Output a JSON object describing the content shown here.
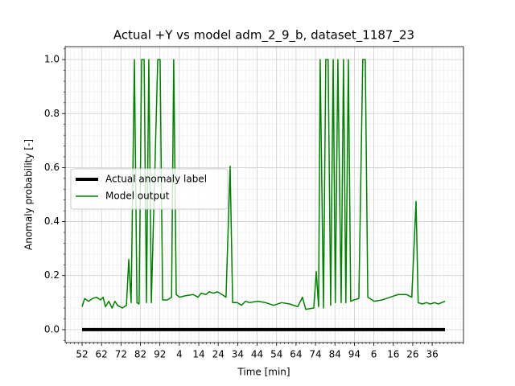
{
  "chart_data": {
    "type": "line",
    "title": "Actual +Y vs model adm_2_9_b, dataset_1187_23",
    "xlabel": "Time [min]",
    "ylabel": "Anomaly probability [-]",
    "x": [
      52,
      53.3,
      55.3,
      57.4,
      59.4,
      61.5,
      62.8,
      64.0,
      65.7,
      67.4,
      68.9,
      70.2,
      72.7,
      74.8,
      76.0,
      77.2,
      78.9,
      80.2,
      81.3,
      82.6,
      83.9,
      85.1,
      86.3,
      87.6,
      90.9,
      92.1,
      93.4,
      95.8,
      98.0,
      99.1,
      100.4,
      102.1,
      104.9,
      109.1,
      111.6,
      113.2,
      115.7,
      117.3,
      119.5,
      121.5,
      124.0,
      126.0,
      128.1,
      129.4,
      131.8,
      134.0,
      136.0,
      138.1,
      142.2,
      146.3,
      150.5,
      154.6,
      158.7,
      162.9,
      165.3,
      167.0,
      171.1,
      172.4,
      173.6,
      174.4,
      176.1,
      177.3,
      178.5,
      179.8,
      181.1,
      182.2,
      183.5,
      185.2,
      186.4,
      187.6,
      188.9,
      190.1,
      191.8,
      194.3,
      196.3,
      197.6,
      198.9,
      202.2,
      206.3,
      210.4,
      214.5,
      218.7,
      221.5,
      223.7,
      224.8,
      226.9,
      229.0,
      231.1,
      233.2,
      235.2,
      238.6
    ],
    "series": [
      {
        "name": "Actual anomaly label",
        "color": "#000000",
        "width": 4,
        "values": [
          0,
          0,
          0,
          0,
          0,
          0,
          0,
          0,
          0,
          0,
          0,
          0,
          0,
          0,
          0,
          0,
          0,
          0,
          0,
          0,
          0,
          0,
          0,
          0,
          0,
          0,
          0,
          0,
          0,
          0,
          0,
          0,
          0,
          0,
          0,
          0,
          0,
          0,
          0,
          0,
          0,
          0,
          0,
          0,
          0,
          0,
          0,
          0,
          0,
          0,
          0,
          0,
          0,
          0,
          0,
          0,
          0,
          0,
          0,
          0,
          0,
          0,
          0,
          0,
          0,
          0,
          0,
          0,
          0,
          0,
          0,
          0,
          0,
          0,
          0,
          0,
          0,
          0,
          0,
          0,
          0,
          0,
          0,
          0,
          0,
          0,
          0,
          0,
          0,
          0,
          0
        ]
      },
      {
        "name": "Model output",
        "color": "#008000",
        "width": 1.5,
        "values": [
          0.085,
          0.115,
          0.105,
          0.115,
          0.12,
          0.11,
          0.12,
          0.085,
          0.105,
          0.08,
          0.105,
          0.09,
          0.08,
          0.09,
          0.26,
          0.1,
          1.0,
          0.1,
          0.095,
          1.0,
          1.0,
          0.1,
          1.0,
          0.1,
          1.0,
          1.0,
          0.11,
          0.11,
          0.12,
          1.0,
          0.13,
          0.12,
          0.125,
          0.13,
          0.12,
          0.135,
          0.13,
          0.14,
          0.135,
          0.14,
          0.13,
          0.12,
          0.605,
          0.1,
          0.1,
          0.09,
          0.105,
          0.1,
          0.105,
          0.1,
          0.09,
          0.1,
          0.095,
          0.085,
          0.12,
          0.075,
          0.08,
          0.215,
          0.085,
          1.0,
          0.08,
          1.0,
          1.0,
          0.09,
          1.0,
          0.1,
          1.0,
          0.1,
          1.0,
          0.1,
          1.0,
          0.105,
          0.11,
          0.115,
          1.0,
          1.0,
          0.12,
          0.105,
          0.11,
          0.12,
          0.13,
          0.13,
          0.12,
          0.475,
          0.1,
          0.095,
          0.1,
          0.095,
          0.1,
          0.095,
          0.105
        ]
      }
    ],
    "xlim": [
      43.3,
      248.1
    ],
    "ylim": [
      -0.048,
      1.048
    ],
    "xticks": [
      52,
      62,
      72,
      82,
      92,
      {
        "value": 102,
        "label": "4"
      },
      {
        "value": 112,
        "label": "14"
      },
      {
        "value": 122,
        "label": "24"
      },
      {
        "value": 132,
        "label": "34"
      },
      {
        "value": 142,
        "label": "44"
      },
      {
        "value": 152,
        "label": "54"
      },
      {
        "value": 162,
        "label": "64"
      },
      {
        "value": 172,
        "label": "74"
      },
      {
        "value": 182,
        "label": "84"
      },
      {
        "value": 192,
        "label": "94"
      },
      {
        "value": 202,
        "label": "6"
      },
      {
        "value": 212,
        "label": "16"
      },
      {
        "value": 222,
        "label": "26"
      },
      {
        "value": 232,
        "label": "36"
      }
    ],
    "yticks": [
      {
        "value": 0,
        "label": "0.0"
      },
      {
        "value": 0.2,
        "label": "0.2"
      },
      {
        "value": 0.4,
        "label": "0.4"
      },
      {
        "value": 0.6,
        "label": "0.6"
      },
      {
        "value": 0.8,
        "label": "0.8"
      },
      {
        "value": 1.0,
        "label": "1.0"
      }
    ],
    "grid": true,
    "minor_grid": true,
    "legend_loc": "center left"
  }
}
